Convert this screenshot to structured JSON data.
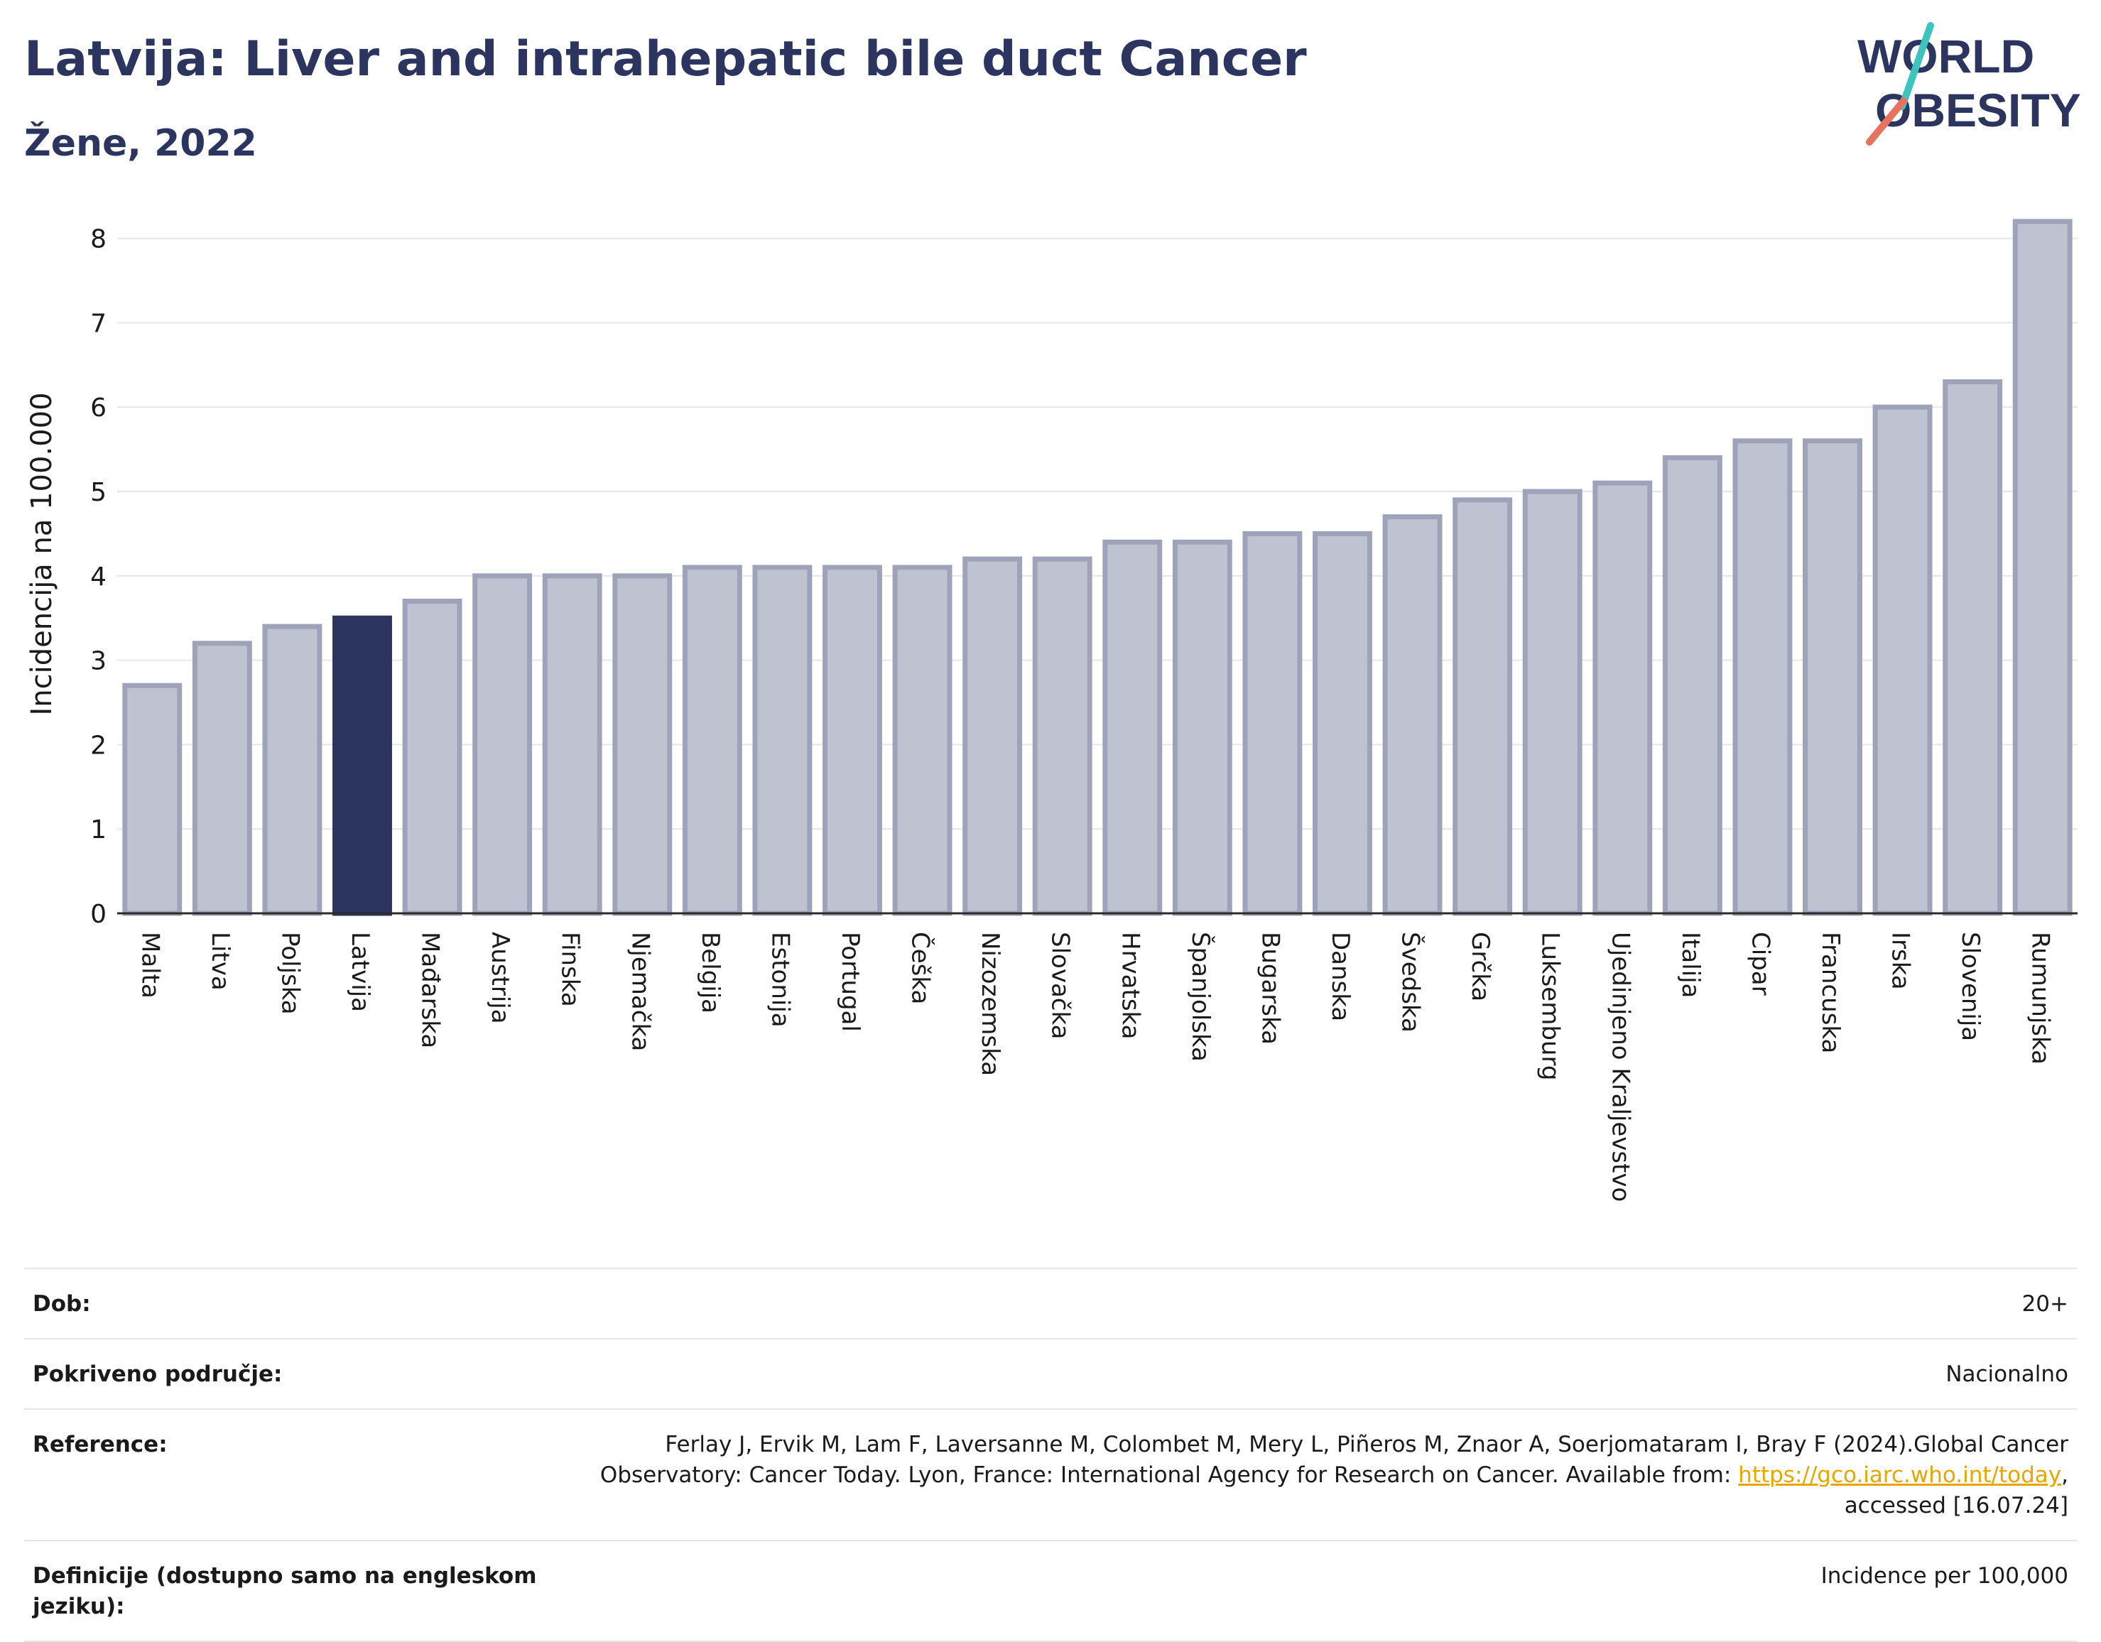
{
  "header": {
    "title": "Latvija: Liver and intrahepatic bile duct Cancer",
    "subtitle": "Žene, 2022"
  },
  "logo": {
    "line1": "WORLD",
    "line2": "OBESITY"
  },
  "colors": {
    "highlight": "#2b3560",
    "bar_fill": "#bfc2d0",
    "bar_stroke": "#9ea3b9",
    "title": "#2b3560",
    "grid": "#e6e6e6",
    "logo_slash_teal": "#3cc4bd",
    "logo_slash_red": "#e5735f",
    "link": "#e6a700"
  },
  "chart_data": {
    "type": "bar",
    "ylabel": "Incidencija na 100.000",
    "ylim": [
      0,
      8.3
    ],
    "yticks": [
      0,
      1,
      2,
      3,
      4,
      5,
      6,
      7,
      8
    ],
    "grid": true,
    "highlight_category": "Latvija",
    "categories": [
      "Malta",
      "Litva",
      "Poljska",
      "Latvija",
      "Mađarska",
      "Austrija",
      "Finska",
      "Njemačka",
      "Belgija",
      "Estonija",
      "Portugal",
      "Češka",
      "Nizozemska",
      "Slovačka",
      "Hrvatska",
      "Španjolska",
      "Bugarska",
      "Danska",
      "Švedska",
      "Grčka",
      "Luksemburg",
      "Ujedinjeno Kraljevstvo",
      "Italija",
      "Cipar",
      "Francuska",
      "Irska",
      "Slovenija",
      "Rumunjska"
    ],
    "values": [
      2.7,
      3.2,
      3.4,
      3.5,
      3.7,
      4.0,
      4.0,
      4.0,
      4.1,
      4.1,
      4.1,
      4.1,
      4.2,
      4.2,
      4.4,
      4.4,
      4.5,
      4.5,
      4.7,
      4.9,
      5.0,
      5.1,
      5.4,
      5.6,
      5.6,
      6.0,
      6.3,
      8.2
    ]
  },
  "meta": [
    {
      "label": "Dob:",
      "value": "20+"
    },
    {
      "label": "Pokriveno područje:",
      "value": "Nacionalno"
    },
    {
      "label": "Reference:",
      "value_pre": "Ferlay J, Ervik M, Lam F, Laversanne M, Colombet M, Mery L, Piñeros M, Znaor A, Soerjomataram I, Bray F (2024).Global Cancer Observatory: Cancer Today. Lyon, France: International Agency for Research on Cancer. Available from: ",
      "link": "https://gco.iarc.who.int/today",
      "value_post": ", accessed [16.07.24]"
    },
    {
      "label": "Definicije (dostupno samo na engleskom jeziku):",
      "value": "Incidence per 100,000"
    }
  ]
}
